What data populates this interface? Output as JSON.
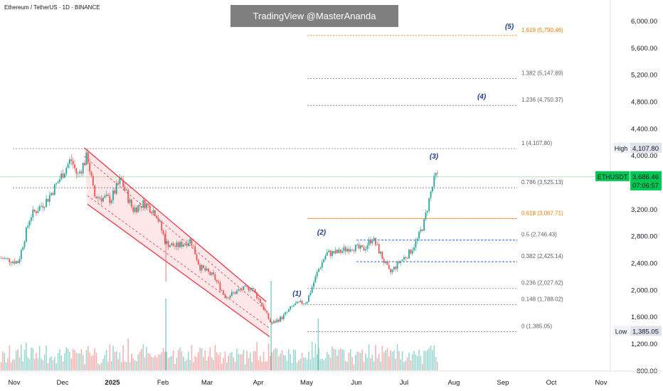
{
  "header": {
    "title": "Ethereum / TetherUS · 1D · BINANCE",
    "watermark": "TradingView @MasterAnanda"
  },
  "colors": {
    "up": "#26a69a",
    "down": "#ef5350",
    "channel": "#f23645",
    "fib_orange": "#f57c00",
    "fib_blue": "#2962ff",
    "wave_label": "#1e3a8a",
    "price_badge": "#00c853",
    "grid": "#787b86"
  },
  "chart_data": {
    "type": "candlestick",
    "symbol": "ETHUSDT",
    "ylim": [
      700,
      6200
    ],
    "y_ticks": [
      800,
      1200,
      1600,
      2000,
      2400,
      2800,
      3200,
      3600,
      4000,
      4400,
      4800,
      5200,
      5600,
      6000
    ],
    "y_tick_labels": [
      "800.00",
      "1,200.00",
      "1,600.00",
      "2,000.00",
      "2,400.00",
      "2,800.00",
      "3,200.00",
      "3,600.00",
      "4,000.00",
      "4,400.00",
      "4,800.00",
      "5,200.00",
      "5,600.00",
      "6,000.00"
    ],
    "x_labels": [
      "Nov",
      "Dec",
      "2025",
      "Feb",
      "Mar",
      "Apr",
      "May",
      "Jun",
      "Jul",
      "Aug",
      "Sep",
      "Oct",
      "Nov"
    ],
    "fib_levels": [
      {
        "label": "0 (1,385.05)",
        "value": 1385.05,
        "style": "gray"
      },
      {
        "label": "0.148 (1,788.02)",
        "value": 1788.02,
        "style": "gray"
      },
      {
        "label": "0.236 (2,027.62)",
        "value": 2027.62,
        "style": "gray"
      },
      {
        "label": "0.382 (2,425.14)",
        "value": 2425.14,
        "style": "blue"
      },
      {
        "label": "0.5 (2,746.43)",
        "value": 2746.43,
        "style": "blue"
      },
      {
        "label": "0.618 (3,067.71)",
        "value": 3067.71,
        "style": "orange"
      },
      {
        "label": "0.786 (3,525.13)",
        "value": 3525.13,
        "style": "gray"
      },
      {
        "label": "1 (4,107.80)",
        "value": 4107.8,
        "style": "gray"
      },
      {
        "label": "1.236 (4,750.37)",
        "value": 4750.37,
        "style": "gray"
      },
      {
        "label": "1.382 (5,147.89)",
        "value": 5147.89,
        "style": "gray"
      },
      {
        "label": "1.618 (5,790.46)",
        "value": 5790.46,
        "style": "orange"
      }
    ],
    "wave_labels": [
      {
        "label": "(1)",
        "date": "Apr 25",
        "value": 1920
      },
      {
        "label": "(2)",
        "date": "May 10",
        "value": 2830
      },
      {
        "label": "(3)",
        "date": "Jul 19",
        "value": 3960
      },
      {
        "label": "(4)",
        "date": "Aug 18",
        "value": 4850
      },
      {
        "label": "(5)",
        "date": "Sep 5",
        "value": 5890
      }
    ],
    "high": {
      "label": "High",
      "value": 4107.8,
      "value_label": "4,107.80"
    },
    "low": {
      "label": "Low",
      "value": 1385.05,
      "value_label": "1,385.05"
    },
    "last": {
      "symbol": "ETHUSDT",
      "value": 3686.46,
      "value_label": "3,686.46",
      "countdown": "07:06:57"
    },
    "channel": {
      "upper": [
        {
          "date": "Dec 14",
          "value": 4120
        },
        {
          "date": "Apr 6",
          "value": 1830
        }
      ],
      "lower": [
        {
          "date": "Dec 16",
          "value": 3280
        },
        {
          "date": "Apr 8",
          "value": 1310
        }
      ]
    },
    "candle_path": [
      {
        "date": "Oct 25",
        "value": 2480
      },
      {
        "date": "Nov 5",
        "value": 2420
      },
      {
        "date": "Nov 12",
        "value": 3100
      },
      {
        "date": "Nov 22",
        "value": 3350
      },
      {
        "date": "Nov 28",
        "value": 3600
      },
      {
        "date": "Dec 6",
        "value": 3950
      },
      {
        "date": "Dec 10",
        "value": 3700
      },
      {
        "date": "Dec 16",
        "value": 4000
      },
      {
        "date": "Dec 20",
        "value": 3400
      },
      {
        "date": "Dec 30",
        "value": 3350
      },
      {
        "date": "Jan 6",
        "value": 3650
      },
      {
        "date": "Jan 13",
        "value": 3200
      },
      {
        "date": "Jan 20",
        "value": 3300
      },
      {
        "date": "Jan 27",
        "value": 3150
      },
      {
        "date": "Feb 3",
        "value": 2700
      },
      {
        "date": "Feb 10",
        "value": 2650
      },
      {
        "date": "Feb 20",
        "value": 2750
      },
      {
        "date": "Feb 26",
        "value": 2350
      },
      {
        "date": "Mar 5",
        "value": 2200
      },
      {
        "date": "Mar 12",
        "value": 1900
      },
      {
        "date": "Mar 20",
        "value": 2000
      },
      {
        "date": "Mar 27",
        "value": 2050
      },
      {
        "date": "Apr 3",
        "value": 1800
      },
      {
        "date": "Apr 9",
        "value": 1500
      },
      {
        "date": "Apr 16",
        "value": 1600
      },
      {
        "date": "Apr 23",
        "value": 1780
      },
      {
        "date": "May 1",
        "value": 1830
      },
      {
        "date": "May 8",
        "value": 2300
      },
      {
        "date": "May 13",
        "value": 2550
      },
      {
        "date": "May 20",
        "value": 2560
      },
      {
        "date": "May 28",
        "value": 2650
      },
      {
        "date": "Jun 5",
        "value": 2600
      },
      {
        "date": "Jun 11",
        "value": 2780
      },
      {
        "date": "Jun 16",
        "value": 2550
      },
      {
        "date": "Jun 22",
        "value": 2250
      },
      {
        "date": "Jun 28",
        "value": 2420
      },
      {
        "date": "Jul 4",
        "value": 2550
      },
      {
        "date": "Jul 9",
        "value": 2750
      },
      {
        "date": "Jul 13",
        "value": 3000
      },
      {
        "date": "Jul 17",
        "value": 3450
      },
      {
        "date": "Jul 20",
        "value": 3700
      },
      {
        "date": "Jul 22",
        "value": 3686
      }
    ]
  }
}
